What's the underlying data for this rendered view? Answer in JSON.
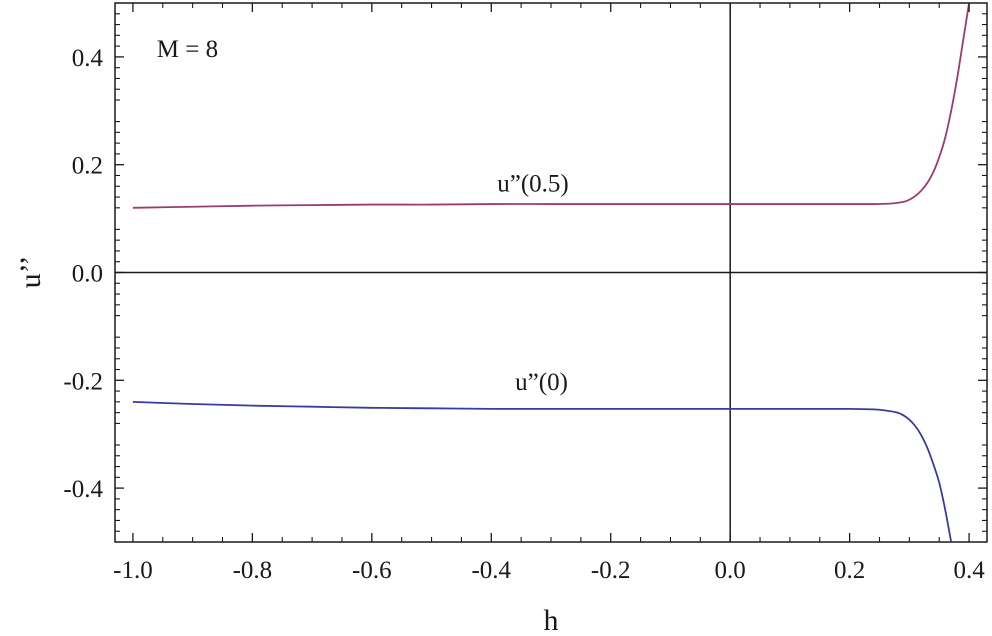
{
  "chart_data": {
    "type": "line",
    "title": "",
    "xlabel": "h",
    "ylabel": "u’’",
    "xlim": [
      -1.03,
      0.43
    ],
    "ylim": [
      -0.5,
      0.5
    ],
    "x_ticks": [
      -1.0,
      -0.8,
      -0.6,
      -0.4,
      -0.2,
      0.0,
      0.2,
      0.4
    ],
    "x_tick_labels": [
      "-1.0",
      "-0.8",
      "-0.6",
      "-0.4",
      "-0.2",
      "0.0",
      "0.2",
      "0.4"
    ],
    "y_ticks": [
      -0.4,
      -0.2,
      0.0,
      0.2,
      0.4
    ],
    "y_tick_labels": [
      "-0.4",
      "-0.2",
      "0.0",
      "0.2",
      "0.4"
    ],
    "grid": false,
    "reference_lines": {
      "x": 0.0,
      "y": 0.0
    },
    "annotations": [
      {
        "text": "M = 8",
        "x": -0.96,
        "y": 0.4
      },
      {
        "text": "u”(0.5)",
        "x": -0.39,
        "y": 0.15
      },
      {
        "text": "u”(0)",
        "x": -0.36,
        "y": -0.218
      }
    ],
    "series": [
      {
        "color": "#9b3b72",
        "x": [
          -1.0,
          -0.9,
          -0.8,
          -0.7,
          -0.6,
          -0.5,
          -0.4,
          -0.3,
          -0.2,
          -0.1,
          0.0,
          0.1,
          0.2,
          0.24,
          0.27,
          0.29,
          0.3,
          0.31,
          0.32,
          0.33,
          0.34,
          0.35,
          0.36,
          0.37,
          0.38,
          0.39,
          0.4
        ],
        "values": [
          0.12,
          0.122,
          0.124,
          0.125,
          0.126,
          0.126,
          0.127,
          0.127,
          0.127,
          0.127,
          0.127,
          0.127,
          0.127,
          0.127,
          0.128,
          0.131,
          0.135,
          0.142,
          0.152,
          0.166,
          0.186,
          0.214,
          0.25,
          0.3,
          0.36,
          0.43,
          0.5
        ]
      },
      {
        "color": "#3a3aa0",
        "x": [
          -1.0,
          -0.9,
          -0.8,
          -0.7,
          -0.6,
          -0.5,
          -0.4,
          -0.3,
          -0.2,
          -0.1,
          0.0,
          0.1,
          0.2,
          0.24,
          0.26,
          0.28,
          0.29,
          0.3,
          0.31,
          0.32,
          0.33,
          0.34,
          0.35,
          0.36,
          0.37
        ],
        "values": [
          -0.24,
          -0.244,
          -0.247,
          -0.249,
          -0.251,
          -0.252,
          -0.253,
          -0.253,
          -0.253,
          -0.253,
          -0.253,
          -0.253,
          -0.253,
          -0.254,
          -0.256,
          -0.26,
          -0.265,
          -0.273,
          -0.285,
          -0.302,
          -0.325,
          -0.355,
          -0.39,
          -0.44,
          -0.5
        ]
      }
    ]
  }
}
